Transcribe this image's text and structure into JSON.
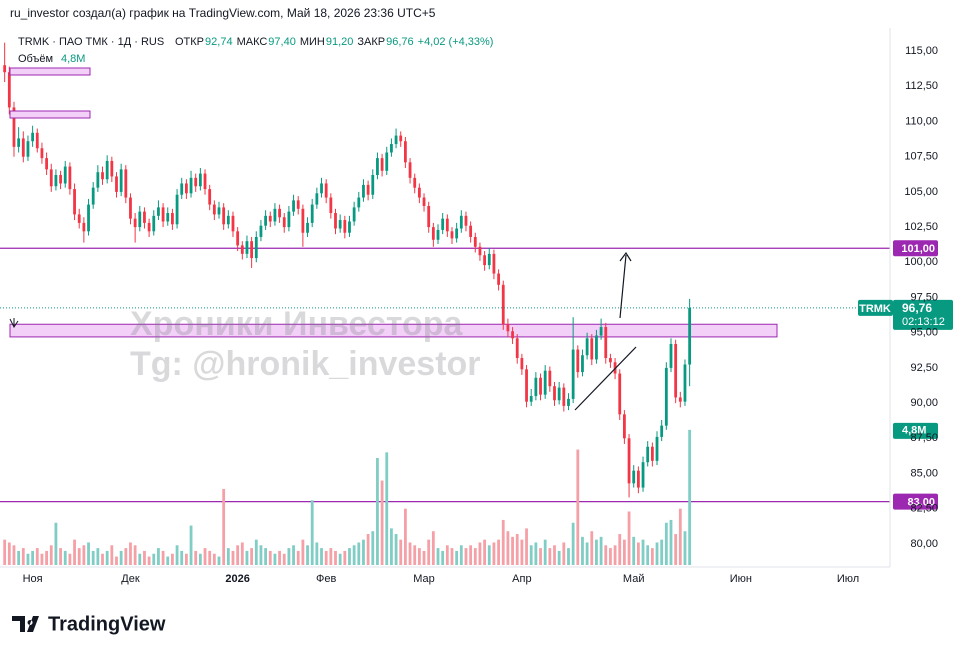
{
  "chart_data": {
    "type": "candlestick",
    "attribution": "ru_investor создал(а) график на TradingView.com, Май 18, 2026 23:36 UTC+5",
    "symbol_line": "TRMK · ПАО ТМК · 1Д · RUS",
    "ohlc_legend": [
      {
        "name": "ОТКР",
        "value": 92.74,
        "label": "92,74"
      },
      {
        "name": "МАКС",
        "value": 97.4,
        "label": "97,40"
      },
      {
        "name": "МИН",
        "value": 91.2,
        "label": "91,20"
      },
      {
        "name": "ЗАКР",
        "value": 96.76,
        "label": "96,76"
      }
    ],
    "change_label": "+4,02 (+4,33%)",
    "volume_name": "Объём",
    "volume_legend": {
      "value": 4800000,
      "label": "4,8М"
    },
    "watermark": [
      "Хроники Инвестора",
      "Tg: @hronik_investor"
    ],
    "brand": "TradingView",
    "up_color": "#089981",
    "down_color": "#f23645",
    "volume_up_color": "#7fcdc4",
    "volume_down_color": "#f5a0a6",
    "level_color": "#9c27b0",
    "zone_color": "#f3d0f7",
    "ylim": [
      78.5,
      116.5
    ],
    "yticks": [
      {
        "value": 80,
        "label": "80,00"
      },
      {
        "value": 82.5,
        "label": "82,50"
      },
      {
        "value": 85,
        "label": "85,00"
      },
      {
        "value": 87.5,
        "label": "87,50"
      },
      {
        "value": 90,
        "label": "90,00"
      },
      {
        "value": 92.5,
        "label": "92,50"
      },
      {
        "value": 95,
        "label": "95,00"
      },
      {
        "value": 97.5,
        "label": "97,50"
      },
      {
        "value": 100,
        "label": "100,00"
      },
      {
        "value": 102.5,
        "label": "102,50"
      },
      {
        "value": 105,
        "label": "105,00"
      },
      {
        "value": 107.5,
        "label": "107,50"
      },
      {
        "value": 110,
        "label": "110,00"
      },
      {
        "value": 112.5,
        "label": "112,50"
      },
      {
        "value": 115,
        "label": "115,00"
      }
    ],
    "xlim": [
      -1,
      190
    ],
    "xticks": [
      {
        "value": 6,
        "label": "Ноя"
      },
      {
        "value": 27,
        "label": "Дек"
      },
      {
        "value": 50,
        "label": "2026"
      },
      {
        "value": 69,
        "label": "Фев"
      },
      {
        "value": 90,
        "label": "Мар"
      },
      {
        "value": 111,
        "label": "Апр"
      },
      {
        "value": 135,
        "label": "Май"
      },
      {
        "value": 158,
        "label": "Июн"
      },
      {
        "value": 181,
        "label": "Июл"
      }
    ],
    "volume_ylim": [
      0,
      19000000
    ],
    "levels": [
      {
        "value": 101,
        "label": "101,00"
      },
      {
        "value": 83,
        "label": "83,00"
      }
    ],
    "zone": [
      94.7,
      95.6
    ],
    "last_price": {
      "value": 96.76,
      "label": "96,76",
      "symbol": "TRMK",
      "countdown": "02:13:12"
    },
    "candles": [
      [
        114.0,
        115.6,
        112.8,
        113.5
      ],
      [
        113.5,
        113.9,
        110.5,
        111.0
      ],
      [
        111.0,
        111.4,
        107.5,
        108.2
      ],
      [
        108.2,
        109.6,
        107.8,
        108.8
      ],
      [
        108.8,
        109.3,
        107.1,
        107.5
      ],
      [
        107.5,
        109.0,
        107.2,
        108.6
      ],
      [
        108.6,
        109.7,
        108.2,
        109.2
      ],
      [
        109.2,
        109.5,
        107.8,
        108.1
      ],
      [
        108.1,
        108.5,
        107.0,
        107.4
      ],
      [
        107.4,
        107.8,
        106.2,
        106.6
      ],
      [
        106.6,
        107.0,
        105.0,
        105.4
      ],
      [
        105.4,
        106.6,
        105.1,
        106.2
      ],
      [
        106.2,
        106.5,
        105.2,
        105.6
      ],
      [
        105.6,
        107.2,
        105.3,
        106.8
      ],
      [
        106.8,
        107.1,
        104.8,
        105.2
      ],
      [
        105.2,
        105.6,
        103.0,
        103.4
      ],
      [
        103.4,
        103.8,
        102.4,
        102.8
      ],
      [
        102.8,
        103.2,
        101.4,
        102.2
      ],
      [
        102.2,
        104.5,
        101.9,
        104.1
      ],
      [
        104.1,
        105.7,
        103.8,
        105.3
      ],
      [
        105.3,
        106.9,
        105.0,
        106.4
      ],
      [
        106.4,
        106.8,
        105.5,
        105.9
      ],
      [
        105.9,
        107.6,
        105.6,
        107.2
      ],
      [
        107.2,
        107.5,
        105.7,
        106.1
      ],
      [
        106.1,
        106.4,
        104.6,
        105.0
      ],
      [
        105.0,
        107.0,
        104.7,
        106.6
      ],
      [
        106.6,
        106.9,
        104.2,
        104.6
      ],
      [
        104.6,
        104.9,
        102.7,
        103.1
      ],
      [
        103.1,
        103.5,
        101.4,
        102.5
      ],
      [
        102.5,
        104.0,
        102.2,
        103.6
      ],
      [
        103.6,
        103.9,
        102.4,
        102.8
      ],
      [
        102.8,
        103.1,
        101.8,
        102.2
      ],
      [
        102.2,
        103.7,
        101.9,
        103.3
      ],
      [
        103.3,
        104.4,
        103.0,
        103.9
      ],
      [
        103.9,
        104.2,
        102.5,
        102.9
      ],
      [
        102.9,
        103.9,
        102.6,
        103.5
      ],
      [
        103.5,
        103.8,
        102.3,
        102.7
      ],
      [
        102.7,
        105.2,
        102.4,
        104.8
      ],
      [
        104.8,
        106.0,
        104.5,
        105.6
      ],
      [
        105.6,
        105.9,
        104.5,
        104.9
      ],
      [
        104.9,
        106.5,
        104.6,
        106.0
      ],
      [
        106.0,
        106.3,
        105.0,
        105.4
      ],
      [
        105.4,
        106.7,
        105.1,
        106.3
      ],
      [
        106.3,
        106.6,
        104.8,
        105.2
      ],
      [
        105.2,
        105.5,
        103.7,
        104.1
      ],
      [
        104.1,
        104.4,
        103.0,
        103.4
      ],
      [
        103.4,
        104.3,
        103.1,
        103.9
      ],
      [
        103.9,
        104.2,
        102.3,
        102.7
      ],
      [
        102.7,
        103.7,
        102.4,
        103.3
      ],
      [
        103.3,
        103.6,
        101.8,
        102.2
      ],
      [
        102.2,
        102.5,
        100.8,
        101.2
      ],
      [
        101.2,
        101.5,
        100.2,
        100.6
      ],
      [
        100.6,
        101.9,
        100.3,
        101.5
      ],
      [
        101.5,
        101.8,
        99.6,
        100.3
      ],
      [
        100.3,
        102.2,
        100.0,
        101.8
      ],
      [
        101.8,
        103.0,
        101.5,
        102.6
      ],
      [
        102.6,
        103.7,
        102.3,
        103.3
      ],
      [
        103.3,
        103.6,
        102.5,
        102.9
      ],
      [
        102.9,
        104.2,
        102.6,
        103.8
      ],
      [
        103.8,
        104.1,
        102.8,
        103.2
      ],
      [
        103.2,
        103.5,
        102.1,
        102.5
      ],
      [
        102.5,
        104.0,
        102.2,
        103.6
      ],
      [
        103.6,
        104.8,
        103.3,
        104.4
      ],
      [
        104.4,
        104.7,
        103.4,
        103.8
      ],
      [
        103.8,
        104.1,
        101.1,
        102.1
      ],
      [
        102.1,
        103.2,
        101.8,
        102.8
      ],
      [
        102.8,
        104.5,
        102.5,
        104.1
      ],
      [
        104.1,
        105.3,
        103.8,
        104.9
      ],
      [
        104.9,
        106.0,
        104.6,
        105.6
      ],
      [
        105.6,
        105.9,
        104.2,
        104.6
      ],
      [
        104.6,
        104.9,
        103.1,
        103.5
      ],
      [
        103.5,
        103.8,
        102.0,
        102.4
      ],
      [
        102.4,
        103.4,
        102.1,
        103.0
      ],
      [
        103.0,
        103.3,
        101.7,
        102.1
      ],
      [
        102.1,
        103.3,
        101.8,
        102.9
      ],
      [
        102.9,
        104.3,
        102.6,
        103.9
      ],
      [
        103.9,
        105.0,
        103.6,
        104.6
      ],
      [
        104.6,
        105.9,
        104.3,
        105.5
      ],
      [
        105.5,
        105.8,
        104.4,
        104.8
      ],
      [
        104.8,
        106.6,
        104.5,
        106.2
      ],
      [
        106.2,
        107.8,
        105.9,
        107.4
      ],
      [
        107.4,
        107.7,
        106.1,
        106.5
      ],
      [
        106.5,
        108.2,
        106.2,
        107.8
      ],
      [
        107.8,
        108.8,
        107.5,
        108.4
      ],
      [
        108.4,
        109.5,
        108.1,
        109.0
      ],
      [
        109.0,
        109.3,
        108.2,
        108.6
      ],
      [
        108.6,
        108.9,
        106.7,
        107.1
      ],
      [
        107.1,
        107.4,
        105.6,
        106.0
      ],
      [
        106.0,
        106.3,
        104.9,
        105.3
      ],
      [
        105.3,
        105.6,
        104.2,
        104.6
      ],
      [
        104.6,
        104.9,
        103.6,
        104.0
      ],
      [
        104.0,
        104.3,
        102.1,
        102.5
      ],
      [
        102.5,
        102.8,
        101.1,
        101.6
      ],
      [
        101.6,
        102.7,
        101.3,
        102.3
      ],
      [
        102.3,
        103.5,
        102.0,
        103.1
      ],
      [
        103.1,
        103.4,
        101.8,
        102.2
      ],
      [
        102.2,
        102.5,
        101.3,
        101.7
      ],
      [
        101.7,
        102.8,
        101.4,
        102.4
      ],
      [
        102.4,
        103.7,
        102.1,
        103.3
      ],
      [
        103.3,
        103.6,
        102.2,
        102.6
      ],
      [
        102.6,
        102.9,
        101.4,
        101.8
      ],
      [
        101.8,
        102.1,
        100.7,
        101.1
      ],
      [
        101.1,
        101.4,
        100.1,
        100.5
      ],
      [
        100.5,
        100.8,
        99.4,
        99.8
      ],
      [
        99.8,
        101.0,
        99.5,
        100.6
      ],
      [
        100.6,
        100.9,
        98.8,
        99.2
      ],
      [
        99.2,
        99.5,
        98.0,
        98.4
      ],
      [
        98.4,
        98.7,
        95.2,
        95.6
      ],
      [
        95.6,
        96.0,
        94.7,
        95.1
      ],
      [
        95.1,
        95.4,
        94.2,
        94.6
      ],
      [
        94.6,
        94.9,
        92.8,
        93.2
      ],
      [
        93.2,
        93.5,
        92.0,
        92.4
      ],
      [
        92.4,
        92.7,
        89.7,
        90.1
      ],
      [
        90.1,
        91.0,
        89.8,
        90.5
      ],
      [
        90.5,
        92.2,
        90.2,
        91.8
      ],
      [
        91.8,
        92.1,
        90.2,
        90.6
      ],
      [
        90.6,
        92.7,
        90.3,
        92.3
      ],
      [
        92.3,
        92.6,
        90.8,
        91.2
      ],
      [
        91.2,
        91.5,
        89.8,
        90.2
      ],
      [
        90.2,
        91.5,
        89.9,
        91.1
      ],
      [
        91.1,
        91.4,
        89.4,
        89.8
      ],
      [
        89.8,
        90.7,
        89.5,
        90.3
      ],
      [
        90.3,
        96.1,
        90.0,
        93.8
      ],
      [
        93.8,
        94.1,
        91.8,
        92.2
      ],
      [
        92.2,
        93.8,
        91.9,
        93.4
      ],
      [
        93.4,
        95.0,
        93.1,
        94.6
      ],
      [
        94.6,
        94.9,
        92.7,
        93.1
      ],
      [
        93.1,
        95.2,
        92.8,
        94.8
      ],
      [
        94.8,
        96.0,
        94.5,
        95.4
      ],
      [
        95.4,
        95.7,
        92.8,
        93.2
      ],
      [
        93.2,
        93.5,
        92.5,
        92.9
      ],
      [
        92.9,
        93.2,
        91.7,
        92.1
      ],
      [
        92.1,
        92.4,
        88.8,
        89.2
      ],
      [
        89.2,
        89.5,
        87.1,
        87.5
      ],
      [
        87.5,
        87.8,
        83.3,
        84.3
      ],
      [
        84.3,
        85.6,
        84.0,
        85.2
      ],
      [
        85.2,
        85.5,
        83.6,
        84.0
      ],
      [
        84.0,
        86.2,
        83.7,
        85.8
      ],
      [
        85.8,
        87.3,
        85.5,
        86.9
      ],
      [
        86.9,
        87.2,
        85.5,
        85.9
      ],
      [
        85.9,
        88.0,
        85.6,
        87.6
      ],
      [
        87.6,
        88.8,
        87.3,
        88.4
      ],
      [
        88.4,
        92.9,
        88.1,
        92.5
      ],
      [
        92.5,
        94.6,
        92.2,
        94.2
      ],
      [
        94.2,
        94.5,
        90.0,
        90.4
      ],
      [
        90.4,
        90.8,
        89.7,
        90.1
      ],
      [
        90.1,
        93.1,
        89.8,
        92.74
      ],
      [
        92.74,
        97.4,
        91.2,
        96.76
      ]
    ],
    "volume": [
      900000,
      800000,
      700000,
      500000,
      600000,
      400000,
      500000,
      600000,
      400000,
      500000,
      700000,
      1500000,
      600000,
      500000,
      400000,
      900000,
      600000,
      700000,
      800000,
      500000,
      600000,
      400000,
      500000,
      700000,
      300000,
      500000,
      600000,
      800000,
      700000,
      400000,
      500000,
      300000,
      400000,
      600000,
      500000,
      300000,
      400000,
      700000,
      500000,
      400000,
      1400000,
      500000,
      400000,
      600000,
      500000,
      400000,
      300000,
      2700000,
      600000,
      500000,
      700000,
      800000,
      500000,
      600000,
      900000,
      700000,
      600000,
      500000,
      400000,
      500000,
      400000,
      600000,
      700000,
      500000,
      900000,
      700000,
      2300000,
      800000,
      600000,
      500000,
      600000,
      500000,
      400000,
      500000,
      600000,
      700000,
      800000,
      900000,
      1100000,
      1200000,
      3800000,
      3000000,
      4000000,
      1300000,
      1100000,
      900000,
      2000000,
      800000,
      700000,
      600000,
      500000,
      900000,
      1200000,
      600000,
      500000,
      700000,
      600000,
      500000,
      700000,
      600000,
      700000,
      600000,
      800000,
      900000,
      700000,
      800000,
      900000,
      1600000,
      1200000,
      1000000,
      1100000,
      900000,
      1300000,
      700000,
      800000,
      600000,
      900000,
      600000,
      700000,
      500000,
      800000,
      600000,
      1500000,
      4100000,
      1000000,
      800000,
      1200000,
      900000,
      1000000,
      700000,
      600000,
      700000,
      1100000,
      900000,
      1900000,
      1000000,
      800000,
      900000,
      700000,
      600000,
      800000,
      900000,
      1500000,
      1600000,
      1100000,
      2000000,
      1200000,
      4800000
    ]
  }
}
